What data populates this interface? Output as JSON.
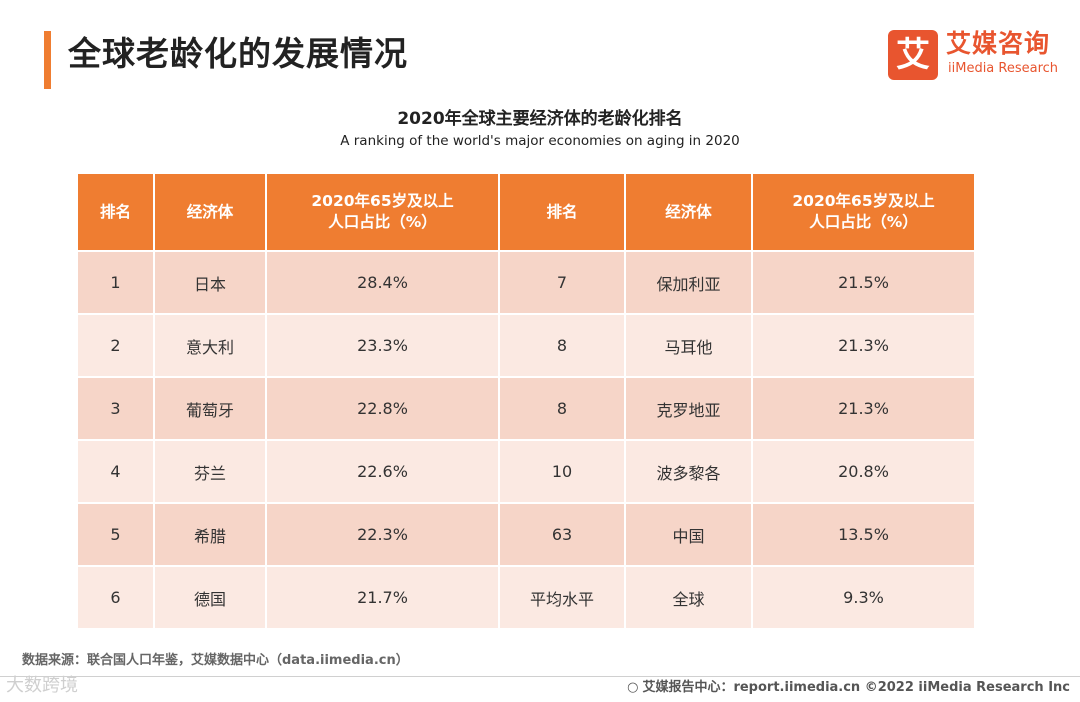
{
  "page": {
    "title": "全球老龄化的发展情况",
    "accent_color": "#ef7d31"
  },
  "logo": {
    "mark": "艾",
    "cn": "艾媒咨询",
    "en": "iiMedia Research",
    "color": "#e8552f"
  },
  "table": {
    "title": "2020年全球主要经济体的老龄化排名",
    "subtitle": "A ranking of the world's major economies on aging in 2020",
    "headers": [
      "排名",
      "经济体",
      "2020年65岁及以上人口占比（%）",
      "排名",
      "经济体",
      "2020年65岁及以上人口占比（%）"
    ],
    "header_pct_line1": "2020年65岁及以上",
    "header_pct_line2": "人口占比（%）",
    "rows": [
      {
        "rank": "1",
        "economy": "日本",
        "pct": "28.4%",
        "rank2": "7",
        "economy2": "保加利亚",
        "pct2": "21.5%"
      },
      {
        "rank": "2",
        "economy": "意大利",
        "pct": "23.3%",
        "rank2": "8",
        "economy2": "马耳他",
        "pct2": "21.3%"
      },
      {
        "rank": "3",
        "economy": "葡萄牙",
        "pct": "22.8%",
        "rank2": "8",
        "economy2": "克罗地亚",
        "pct2": "21.3%"
      },
      {
        "rank": "4",
        "economy": "芬兰",
        "pct": "22.6%",
        "rank2": "10",
        "economy2": "波多黎各",
        "pct2": "20.8%"
      },
      {
        "rank": "5",
        "economy": "希腊",
        "pct": "22.3%",
        "rank2": "63",
        "economy2": "中国",
        "pct2": "13.5%"
      },
      {
        "rank": "6",
        "economy": "德国",
        "pct": "21.7%",
        "rank2": "平均水平",
        "economy2": "全球",
        "pct2": "9.3%"
      }
    ],
    "header_color": "#ef7d31",
    "row_color_odd": "#f6d5c8",
    "row_color_even": "#fbe9e2"
  },
  "footer": {
    "source": "数据来源：联合国人口年鉴，艾媒数据中心（data.iimedia.cn）",
    "right": "艾媒报告中心：report.iimedia.cn ©2022 iiMedia Research Inc",
    "watermark": "大数跨境"
  }
}
